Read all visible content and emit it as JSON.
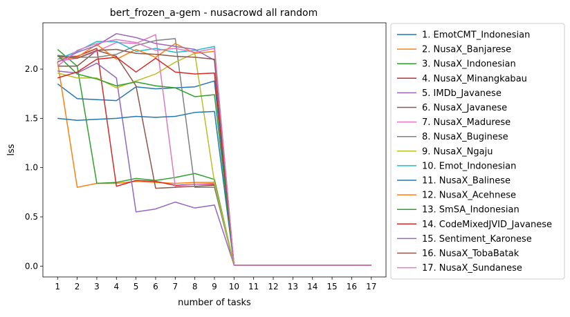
{
  "chart_data": {
    "type": "line",
    "title": "bert_frozen_a-gem - nusacrowd all random",
    "xlabel": "number of tasks",
    "ylabel": "lss",
    "x": [
      1,
      2,
      3,
      4,
      5,
      6,
      7,
      8,
      9,
      10,
      11,
      12,
      13,
      14,
      15,
      16,
      17
    ],
    "xlim": [
      0.25,
      17.75
    ],
    "ylim": [
      -0.11,
      2.47
    ],
    "yticks": [
      0.0,
      0.5,
      1.0,
      1.5,
      2.0
    ],
    "ytick_labels": [
      "0.0",
      "0.5",
      "1.0",
      "1.5",
      "2.0"
    ],
    "xtick_labels": [
      "1",
      "2",
      "3",
      "4",
      "5",
      "6",
      "7",
      "8",
      "9",
      "10",
      "11",
      "12",
      "13",
      "14",
      "15",
      "16",
      "17"
    ],
    "grid": false,
    "legend_position": "outside-right",
    "series": [
      {
        "name": "1. EmotCMT_Indonesian",
        "color": "#1f77b4",
        "values": [
          1.85,
          1.7,
          1.69,
          1.68,
          1.82,
          1.8,
          1.81,
          1.82,
          1.88,
          0.01,
          0.01,
          0.01,
          0.01,
          0.01,
          0.01,
          0.01,
          0.01
        ]
      },
      {
        "name": "2. NusaX_Banjarese",
        "color": "#ff7f0e",
        "values": [
          2.07,
          0.8,
          0.84,
          0.84,
          0.86,
          0.85,
          0.84,
          0.85,
          0.85,
          0.01,
          0.01,
          0.01,
          0.01,
          0.01,
          0.01,
          0.01,
          0.01
        ]
      },
      {
        "name": "3. NusaX_Indonesian",
        "color": "#2ca02c",
        "values": [
          2.2,
          2.03,
          0.84,
          0.85,
          0.89,
          0.87,
          0.9,
          0.94,
          0.88,
          0.01,
          0.01,
          0.01,
          0.01,
          0.01,
          0.01,
          0.01,
          0.01
        ]
      },
      {
        "name": "4. NusaX_Minangkabau",
        "color": "#d62728",
        "values": [
          2.13,
          2.13,
          2.21,
          0.81,
          0.87,
          0.86,
          0.82,
          0.83,
          0.83,
          0.01,
          0.01,
          0.01,
          0.01,
          0.01,
          0.01,
          0.01,
          0.01
        ]
      },
      {
        "name": "5. IMDb_Javanese",
        "color": "#9467bd",
        "values": [
          1.98,
          1.96,
          2.06,
          1.91,
          0.55,
          0.58,
          0.65,
          0.59,
          0.62,
          0.01,
          0.01,
          0.01,
          0.01,
          0.01,
          0.01,
          0.01,
          0.01
        ]
      },
      {
        "name": "6. NusaX_Javanese",
        "color": "#8c564b",
        "values": [
          2.03,
          2.03,
          2.19,
          2.13,
          1.83,
          0.79,
          0.8,
          0.81,
          0.82,
          0.01,
          0.01,
          0.01,
          0.01,
          0.01,
          0.01,
          0.01,
          0.01
        ]
      },
      {
        "name": "7. NusaX_Madurese",
        "color": "#e377c2",
        "values": [
          2.08,
          2.11,
          2.18,
          2.27,
          2.26,
          2.35,
          0.81,
          0.83,
          0.84,
          0.01,
          0.01,
          0.01,
          0.01,
          0.01,
          0.01,
          0.01,
          0.01
        ]
      },
      {
        "name": "8. NusaX_Buginese",
        "color": "#7f7f7f",
        "values": [
          2.14,
          2.12,
          2.12,
          2.15,
          2.24,
          2.29,
          2.31,
          0.8,
          0.8,
          0.01,
          0.01,
          0.01,
          0.01,
          0.01,
          0.01,
          0.01,
          0.01
        ]
      },
      {
        "name": "9. NusaX_Ngaju",
        "color": "#bcbd22",
        "values": [
          1.96,
          1.91,
          1.91,
          1.81,
          1.88,
          1.95,
          2.07,
          2.16,
          0.85,
          0.01,
          0.01,
          0.01,
          0.01,
          0.01,
          0.01,
          0.01,
          0.01
        ]
      },
      {
        "name": "10. Emot_Indonesian",
        "color": "#17becf",
        "values": [
          2.1,
          2.18,
          2.28,
          2.28,
          2.18,
          2.21,
          2.17,
          2.19,
          2.23,
          0.01,
          0.01,
          0.01,
          0.01,
          0.01,
          0.01,
          0.01,
          0.01
        ]
      },
      {
        "name": "11. NusaX_Balinese",
        "color": "#1f77b4",
        "values": [
          1.5,
          1.48,
          1.49,
          1.5,
          1.52,
          1.51,
          1.52,
          1.56,
          1.57,
          0.01,
          0.01,
          0.01,
          0.01,
          0.01,
          0.01,
          0.01,
          0.01
        ]
      },
      {
        "name": "12. NusaX_Acehnese",
        "color": "#ff7f0e",
        "values": [
          2.1,
          2.12,
          2.25,
          2.1,
          2.2,
          2.12,
          2.26,
          2.16,
          2.18,
          0.01,
          0.01,
          0.01,
          0.01,
          0.01,
          0.01,
          0.01,
          0.01
        ]
      },
      {
        "name": "13. SmSA_Indonesian",
        "color": "#2ca02c",
        "values": [
          2.14,
          1.95,
          1.9,
          1.83,
          1.87,
          1.83,
          1.81,
          1.72,
          1.74,
          0.01,
          0.01,
          0.01,
          0.01,
          0.01,
          0.01,
          0.01,
          0.01
        ]
      },
      {
        "name": "14. CodeMixedJVID_Javanese",
        "color": "#d62728",
        "values": [
          1.91,
          1.97,
          2.1,
          2.12,
          1.97,
          2.11,
          1.97,
          1.95,
          1.96,
          0.01,
          0.01,
          0.01,
          0.01,
          0.01,
          0.01,
          0.01,
          0.01
        ]
      },
      {
        "name": "15. Sentiment_Karonese",
        "color": "#9467bd",
        "values": [
          2.07,
          2.17,
          2.24,
          2.36,
          2.32,
          2.26,
          2.23,
          2.2,
          2.09,
          0.01,
          0.01,
          0.01,
          0.01,
          0.01,
          0.01,
          0.01,
          0.01
        ]
      },
      {
        "name": "16. NusaX_TobaBatak",
        "color": "#8c564b",
        "values": [
          2.13,
          2.11,
          2.19,
          2.2,
          2.16,
          2.15,
          2.13,
          2.12,
          2.1,
          0.01,
          0.01,
          0.01,
          0.01,
          0.01,
          0.01,
          0.01,
          0.01
        ]
      },
      {
        "name": "17. NusaX_Sundanese",
        "color": "#e377c2",
        "values": [
          2.03,
          2.19,
          2.26,
          2.3,
          2.27,
          2.19,
          2.21,
          2.17,
          2.21,
          0.01,
          0.01,
          0.01,
          0.01,
          0.01,
          0.01,
          0.01,
          0.01
        ]
      }
    ]
  }
}
